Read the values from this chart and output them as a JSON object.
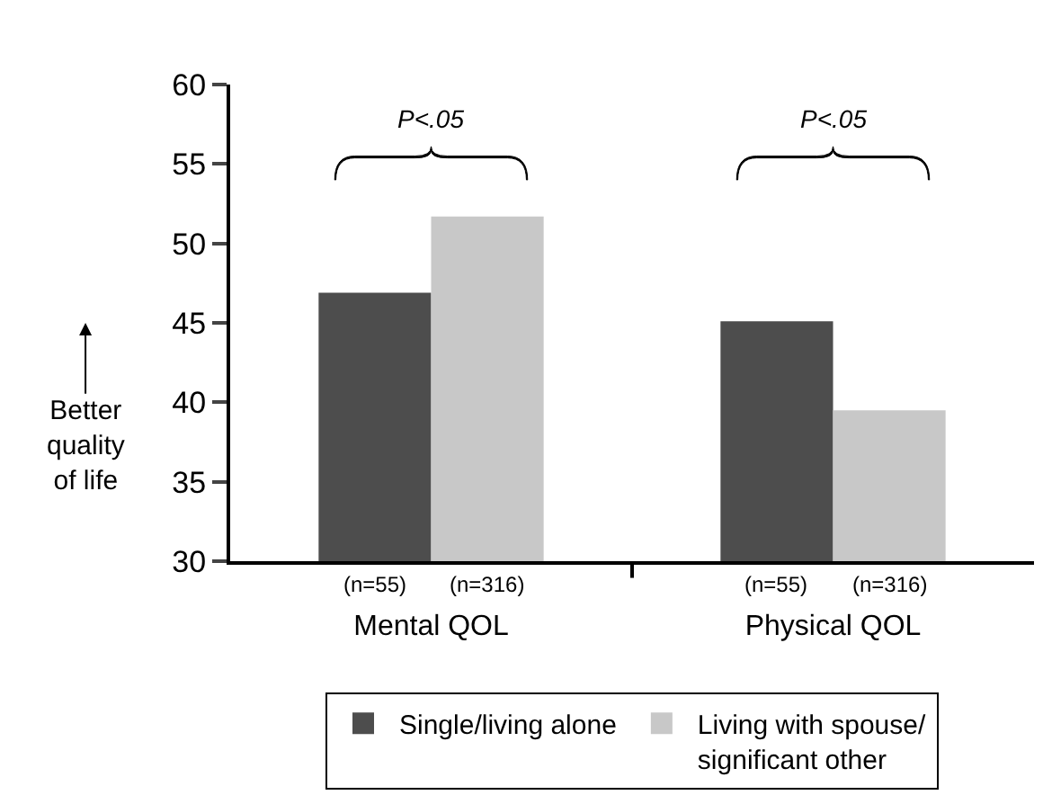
{
  "chart_data": {
    "type": "bar",
    "ylabel": "Better quality of life",
    "categories": [
      "Mental QOL",
      "Physical QOL"
    ],
    "series": [
      {
        "name": "Single/living alone",
        "color": "#4d4d4d",
        "values": [
          46.9,
          45.1
        ]
      },
      {
        "name": "Living with spouse/ significant other",
        "color": "#c8c8c8",
        "values": [
          51.7,
          39.5
        ]
      }
    ],
    "ylim": [
      30,
      60
    ],
    "yticks": [
      30,
      35,
      40,
      45,
      50,
      55,
      60
    ],
    "legend": "bottom",
    "annotations": [
      "P<.05",
      "P<.05",
      "(n=55)",
      "(n=316)",
      "(n=55)",
      "(n=316)"
    ]
  }
}
